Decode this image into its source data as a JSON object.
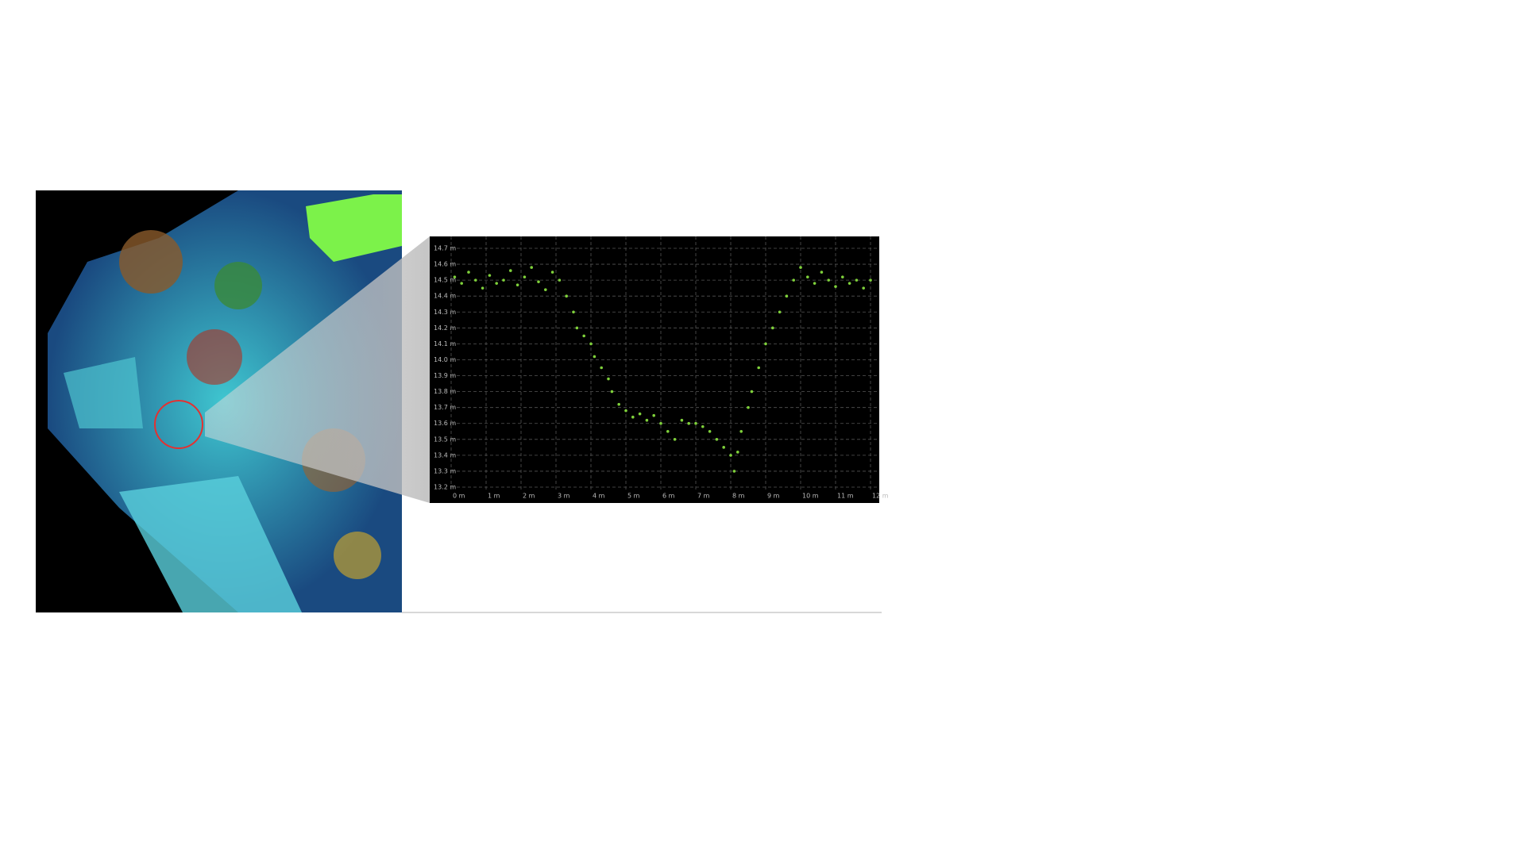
{
  "chart_data": {
    "type": "scatter",
    "series": [
      {
        "name": null,
        "color": "#7fd13b",
        "x": [
          0.1,
          0.3,
          0.5,
          0.7,
          0.9,
          1.1,
          1.3,
          1.5,
          1.7,
          1.9,
          2.1,
          2.3,
          2.5,
          2.7,
          2.9,
          3.1,
          3.3,
          3.5,
          3.6,
          3.8,
          4.0,
          4.1,
          4.3,
          4.5,
          4.6,
          4.8,
          5.0,
          5.2,
          5.4,
          5.6,
          5.8,
          6.0,
          6.2,
          6.4,
          6.6,
          6.8,
          7.0,
          7.2,
          7.4,
          7.6,
          7.8,
          8.0,
          8.1,
          8.2,
          8.3,
          8.5,
          8.6,
          8.8,
          9.0,
          9.2,
          9.4,
          9.6,
          9.8,
          10.0,
          10.2,
          10.4,
          10.6,
          10.8,
          11.0,
          11.2,
          11.4,
          11.6,
          11.8,
          12.0
        ],
        "values": [
          14.52,
          14.48,
          14.55,
          14.5,
          14.45,
          14.53,
          14.48,
          14.5,
          14.56,
          14.47,
          14.52,
          14.58,
          14.49,
          14.44,
          14.55,
          14.5,
          14.4,
          14.3,
          14.2,
          14.15,
          14.1,
          14.02,
          13.95,
          13.88,
          13.8,
          13.72,
          13.68,
          13.64,
          13.66,
          13.62,
          13.65,
          13.6,
          13.55,
          13.5,
          13.62,
          13.6,
          13.6,
          13.58,
          13.55,
          13.5,
          13.45,
          13.4,
          13.3,
          13.42,
          13.55,
          13.7,
          13.8,
          13.95,
          14.1,
          14.2,
          14.3,
          14.4,
          14.5,
          14.58,
          14.52,
          14.48,
          14.55,
          14.5,
          14.46,
          14.52,
          14.48,
          14.5,
          14.45,
          14.5
        ]
      }
    ],
    "xlim": [
      0,
      12
    ],
    "xticks": [
      {
        "value": 0,
        "label": "0 m"
      },
      {
        "value": 1,
        "label": "1 m"
      },
      {
        "value": 2,
        "label": "2 m"
      },
      {
        "value": 3,
        "label": "3 m"
      },
      {
        "value": 4,
        "label": "4 m"
      },
      {
        "value": 5,
        "label": "5 m"
      },
      {
        "value": 6,
        "label": "6 m"
      },
      {
        "value": 7,
        "label": "7 m"
      },
      {
        "value": 8,
        "label": "8 m"
      },
      {
        "value": 9,
        "label": "9 m"
      },
      {
        "value": 10,
        "label": "10 m"
      },
      {
        "value": 11,
        "label": "11 m"
      },
      {
        "value": 12,
        "label": "12 m"
      }
    ],
    "ylim": [
      13.2,
      14.7
    ],
    "yticks": [
      {
        "value": 13.2,
        "label": "13.2 m"
      },
      {
        "value": 13.3,
        "label": "13.3 m"
      },
      {
        "value": 13.4,
        "label": "13.4 m"
      },
      {
        "value": 13.5,
        "label": "13.5 m"
      },
      {
        "value": 13.6,
        "label": "13.6 m"
      },
      {
        "value": 13.7,
        "label": "13.7 m"
      },
      {
        "value": 13.8,
        "label": "13.8 m"
      },
      {
        "value": 13.9,
        "label": "13.9 m"
      },
      {
        "value": 14.0,
        "label": "14.0 m"
      },
      {
        "value": 14.1,
        "label": "14.1 m"
      },
      {
        "value": 14.2,
        "label": "14.2 m"
      },
      {
        "value": 14.3,
        "label": "14.3 m"
      },
      {
        "value": 14.4,
        "label": "14.4 m"
      },
      {
        "value": 14.5,
        "label": "14.5 m"
      },
      {
        "value": 14.6,
        "label": "14.6 m"
      },
      {
        "value": 14.7,
        "label": "14.7 m"
      }
    ],
    "grid": true
  }
}
